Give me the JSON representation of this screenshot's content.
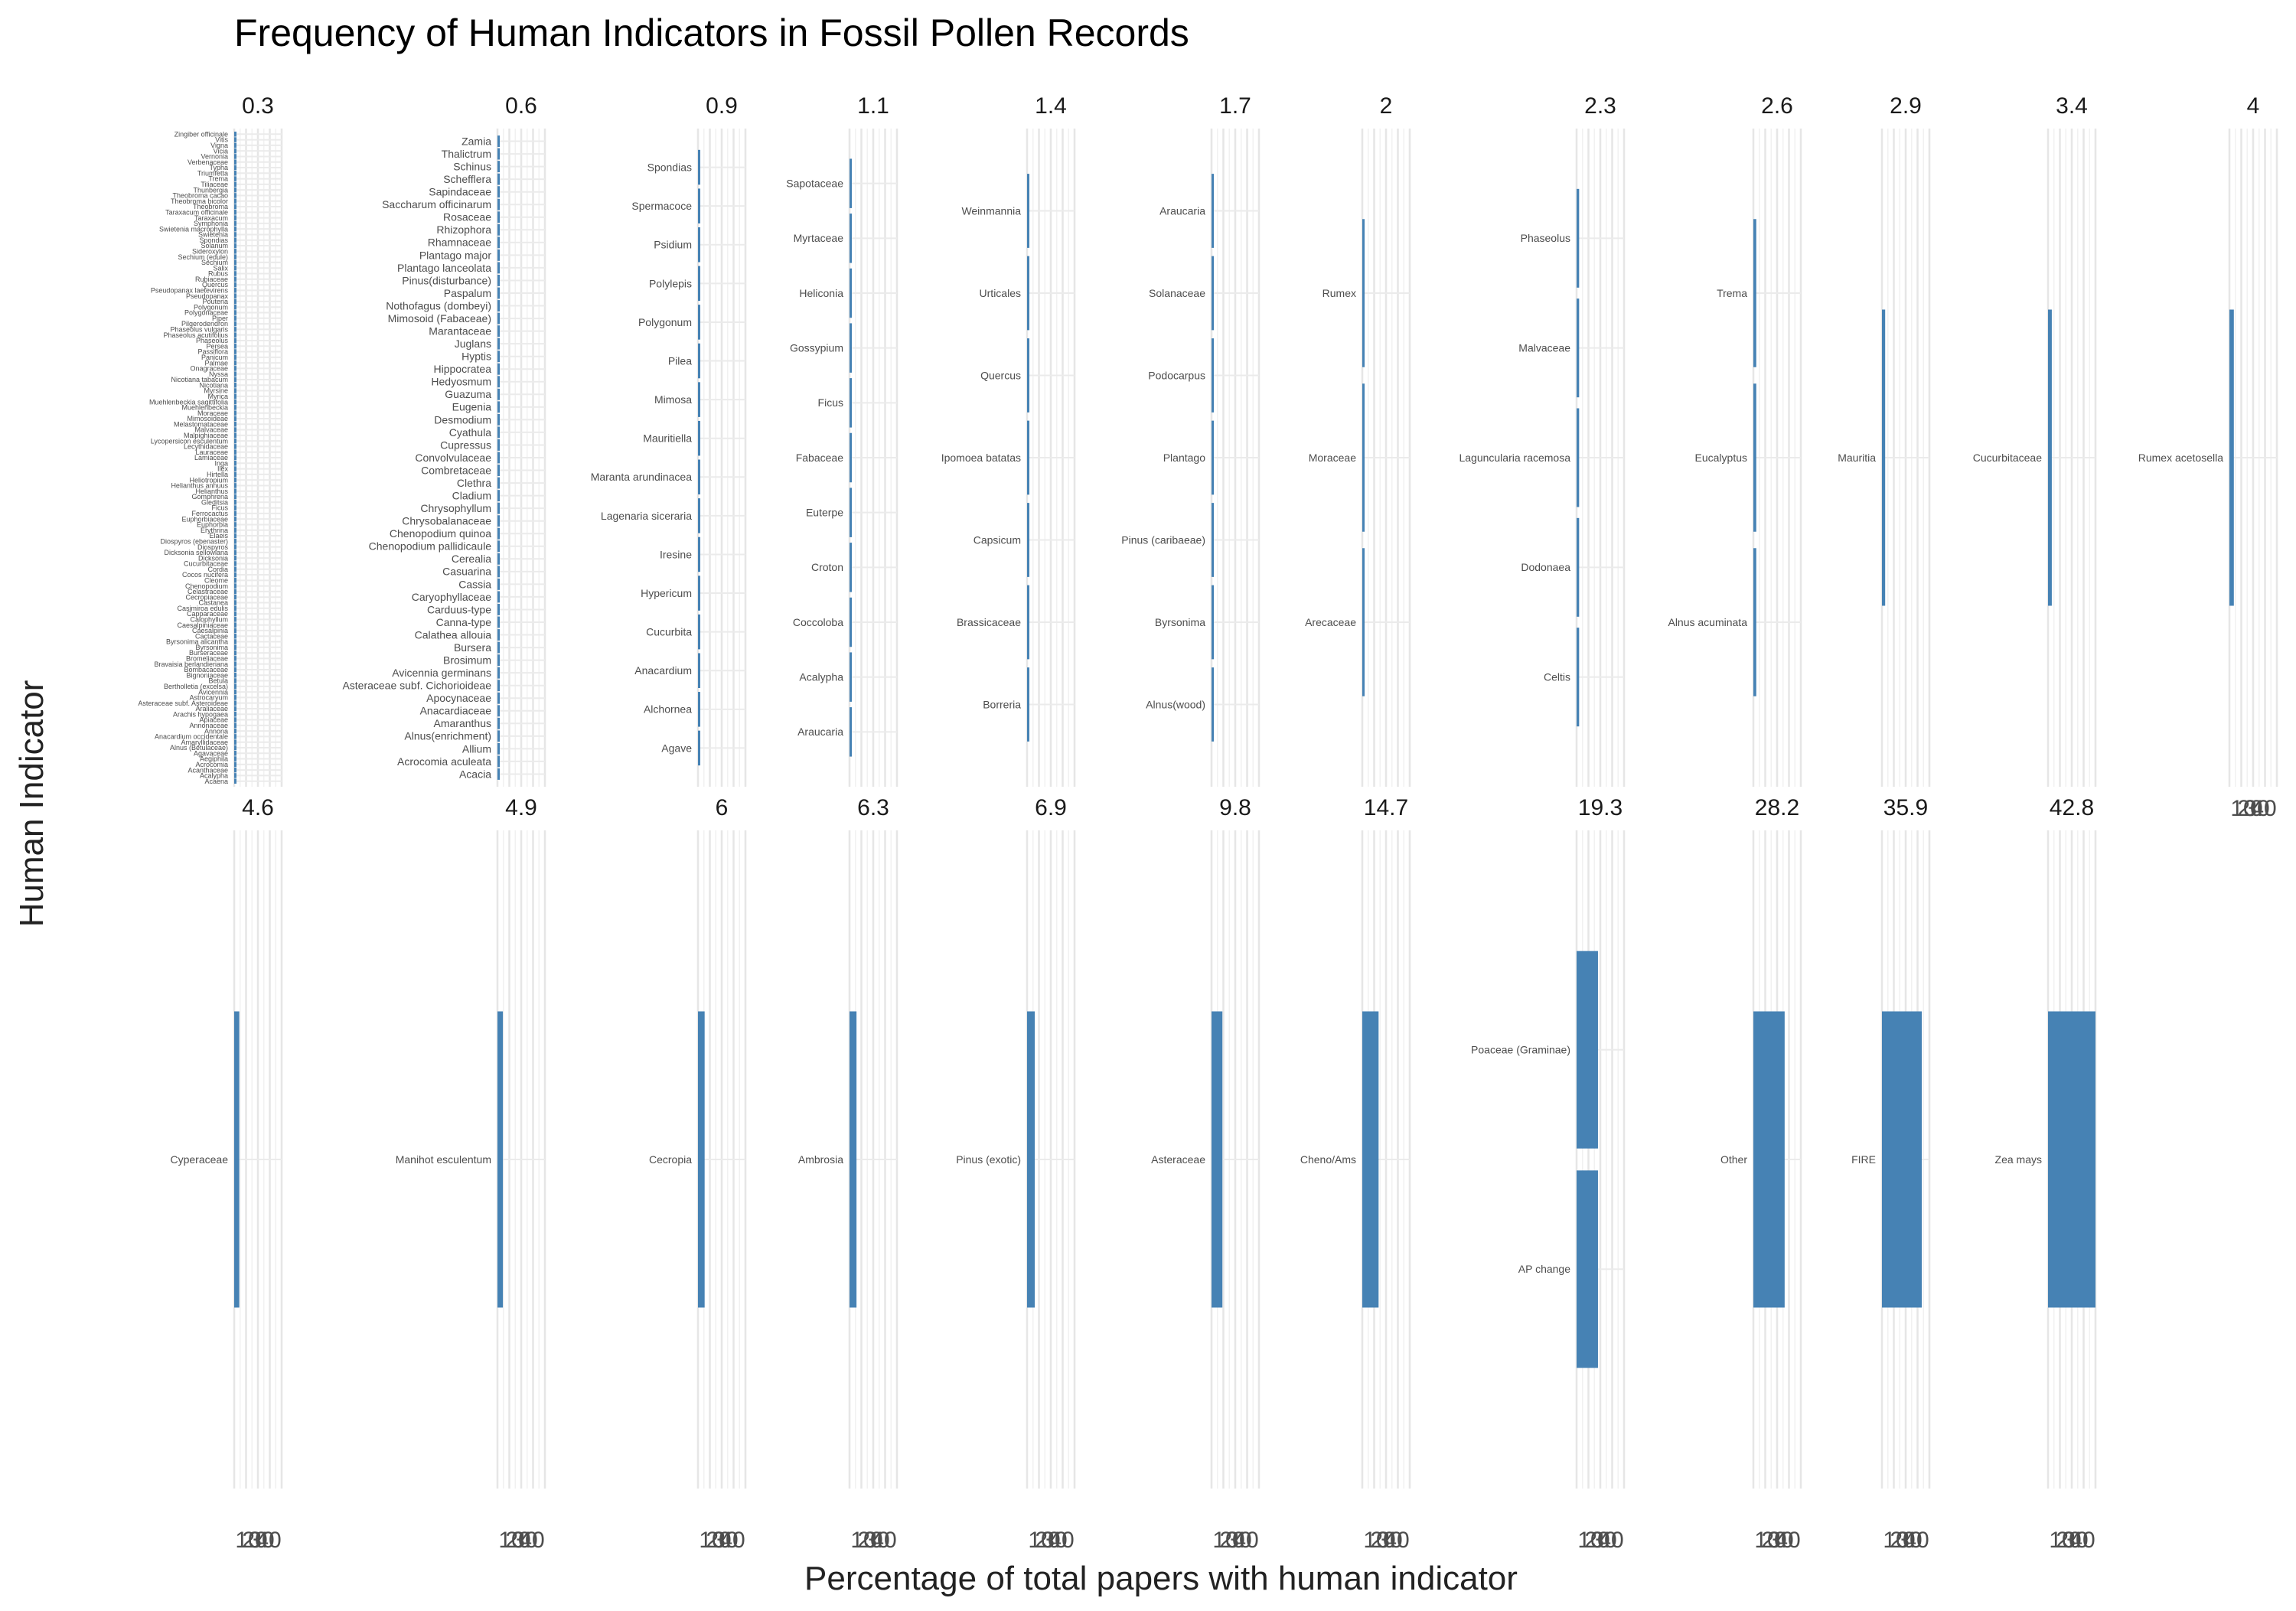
{
  "chart_data": {
    "type": "bar",
    "orientation": "horizontal",
    "layout": "faceted",
    "title": "Frequency of Human Indicators in Fossil Pollen Records",
    "xlabel": "Percentage of total papers with human indicator",
    "ylabel": "Human Indicator",
    "bar_color": "#4682b4",
    "grid": true,
    "x_tick_labels_overlapping": [
      "10",
      "20",
      "30",
      "40"
    ],
    "xlim": [
      0,
      42.8
    ],
    "facets": [
      {
        "value": "0.3",
        "indicators": [
          "Acaena",
          "Acalypha",
          "Acanthaceae",
          "Acrocomia",
          "Aegiphila",
          "Agavaceae",
          "Alnus (Betulaceae)",
          "Amaryllidaceae",
          "Anacardium occidentale",
          "Annona",
          "Annonaceae",
          "Apiaceae",
          "Arachis hypogaea",
          "Araliaceae",
          "Asteraceae subf. Asteroideae",
          "Astrocaryum",
          "Avicennia",
          "Bertholletia (excelsa)",
          "Betula",
          "Bignoniaceae",
          "Bombacaceae",
          "Bravaisia berlandieriana",
          "Bromeliaceae",
          "Burseraceae",
          "Byrsonima",
          "Byrsonima alicantha",
          "Cactaceae",
          "Caesalpinia",
          "Caesalpiniaceae",
          "Calophyllum",
          "Capparaceae",
          "Casimiroa edulis",
          "Castanea",
          "Cecropiaceae",
          "Celastraceae",
          "Chenopodium",
          "Cleome",
          "Cocos nucifera",
          "Cordia",
          "Cucurbitaceae",
          "Dicksonia",
          "Dicksonia sellowiana",
          "Diospyros",
          "Diospyros (ebenaster)",
          "Elaeis",
          "Erythrina",
          "Euphorbia",
          "Euphorbiaceae",
          "Ferrocactus",
          "Ficus",
          "Gleditsia",
          "Gomphrena",
          "Helianthus",
          "Helianthus annuus",
          "Heliotropium",
          "Hirtella",
          "Ilex",
          "Inga",
          "Lamiaceae",
          "Lauraceae",
          "Lecythidaceae",
          "Lycopersicon esculentum",
          "Malpighiaceae",
          "Malvaceae",
          "Melastomataceae",
          "Mimosoideae",
          "Moraceae",
          "Muehlenbeckia",
          "Muehlenbeckia sagittifolia",
          "Myrica",
          "Myrsine",
          "Nicotiana",
          "Nicotiana tabacum",
          "Nyssa",
          "Onagraceae",
          "Palmae",
          "Panicum",
          "Passiflora",
          "Persea",
          "Phaseolus",
          "Phaseolus acutifolius",
          "Phaseolus vulgaris",
          "Pilgerodendron",
          "Piper",
          "Polygonaceae",
          "Polygonum",
          "Pouteria",
          "Pseudopanax",
          "Pseudopanax laetevirens",
          "Quercus",
          "Rubiaceae",
          "Rubus",
          "Salix",
          "Sechium",
          "Sechium (edule)",
          "Sideroxylon",
          "Solanum",
          "Spondias",
          "Swietenia",
          "Swietenia macrophylla",
          "Symphonia",
          "Taraxacum",
          "Taraxacum officinale",
          "Theobroma",
          "Theobroma bicolor",
          "Theobroma cacao",
          "Thunbergia",
          "Tiliaceae",
          "Trema",
          "Triumfetta",
          "Typha",
          "Verbenaceae",
          "Vernonia",
          "Vicia",
          "Vigna",
          "Vitis",
          "Zingiber officinale"
        ]
      },
      {
        "value": "0.6",
        "indicators": [
          "Acacia",
          "Acrocomia aculeata",
          "Allium",
          "Alnus(enrichment)",
          "Amaranthus",
          "Anacardiaceae",
          "Apocynaceae",
          "Asteraceae subf. Cichorioideae",
          "Avicennia germinans",
          "Brosimum",
          "Bursera",
          "Calathea allouia",
          "Canna-type",
          "Carduus-type",
          "Caryophyllaceae",
          "Cassia",
          "Casuarina",
          "Cerealia",
          "Chenopodium pallidicaule",
          "Chenopodium quinoa",
          "Chrysobalanaceae",
          "Chrysophyllum",
          "Cladium",
          "Clethra",
          "Combretaceae",
          "Convolvulaceae",
          "Cupressus",
          "Cyathula",
          "Desmodium",
          "Eugenia",
          "Guazuma",
          "Hedyosmum",
          "Hippocratea",
          "Hyptis",
          "Juglans",
          "Marantaceae",
          "Mimosoid (Fabaceae)",
          "Nothofagus (dombeyi)",
          "Paspalum",
          "Pinus(disturbance)",
          "Plantago lanceolata",
          "Plantago major",
          "Rhamnaceae",
          "Rhizophora",
          "Rosaceae",
          "Saccharum officinarum",
          "Sapindaceae",
          "Schefflera",
          "Schinus",
          "Thalictrum",
          "Zamia"
        ]
      },
      {
        "value": "0.9",
        "indicators": [
          "Agave",
          "Alchornea",
          "Anacardium",
          "Cucurbita",
          "Hypericum",
          "Iresine",
          "Lagenaria siceraria",
          "Maranta arundinacea",
          "Mauritiella",
          "Mimosa",
          "Pilea",
          "Polygonum",
          "Polylepis",
          "Psidium",
          "Spermacoce",
          "Spondias"
        ]
      },
      {
        "value": "1.1",
        "indicators": [
          "Araucaria",
          "Acalypha",
          "Coccoloba",
          "Croton",
          "Euterpe",
          "Fabaceae",
          "Ficus",
          "Gossypium",
          "Heliconia",
          "Myrtaceae",
          "Sapotaceae"
        ]
      },
      {
        "value": "1.4",
        "indicators": [
          "Borreria",
          "Brassicaceae",
          "Capsicum",
          "Ipomoea batatas",
          "Quercus",
          "Urticales",
          "Weinmannia"
        ]
      },
      {
        "value": "1.7",
        "indicators": [
          "Alnus(wood)",
          "Byrsonima",
          "Pinus (caribaeae)",
          "Plantago",
          "Podocarpus",
          "Solanaceae",
          "Araucaria"
        ]
      },
      {
        "value": "2",
        "indicators": [
          "Arecaceae",
          "Moraceae",
          "Rumex"
        ]
      },
      {
        "value": "2.3",
        "indicators": [
          "Celtis",
          "Dodonaea",
          "Laguncularia racemosa",
          "Malvaceae",
          "Phaseolus"
        ]
      },
      {
        "value": "2.6",
        "indicators": [
          "Alnus acuminata",
          "Eucalyptus",
          "Trema"
        ]
      },
      {
        "value": "2.9",
        "indicators": [
          "Mauritia"
        ]
      },
      {
        "value": "3.4",
        "indicators": [
          "Cucurbitaceae"
        ]
      },
      {
        "value": "4",
        "indicators": [
          "Rumex acetosella"
        ]
      },
      {
        "value": "4.6",
        "indicators": [
          "Cyperaceae"
        ]
      },
      {
        "value": "4.9",
        "indicators": [
          "Manihot esculentum"
        ]
      },
      {
        "value": "6",
        "indicators": [
          "Cecropia"
        ]
      },
      {
        "value": "6.3",
        "indicators": [
          "Ambrosia"
        ]
      },
      {
        "value": "6.9",
        "indicators": [
          "Pinus (exotic)"
        ]
      },
      {
        "value": "9.8",
        "indicators": [
          "Asteraceae"
        ]
      },
      {
        "value": "14.7",
        "indicators": [
          "Cheno/Ams"
        ]
      },
      {
        "value": "19.3",
        "indicators": [
          "AP change",
          "Poaceae (Graminae)"
        ]
      },
      {
        "value": "28.2",
        "indicators": [
          "Other"
        ]
      },
      {
        "value": "35.9",
        "indicators": [
          "FIRE"
        ]
      },
      {
        "value": "42.8",
        "indicators": [
          "Zea mays"
        ]
      }
    ]
  }
}
